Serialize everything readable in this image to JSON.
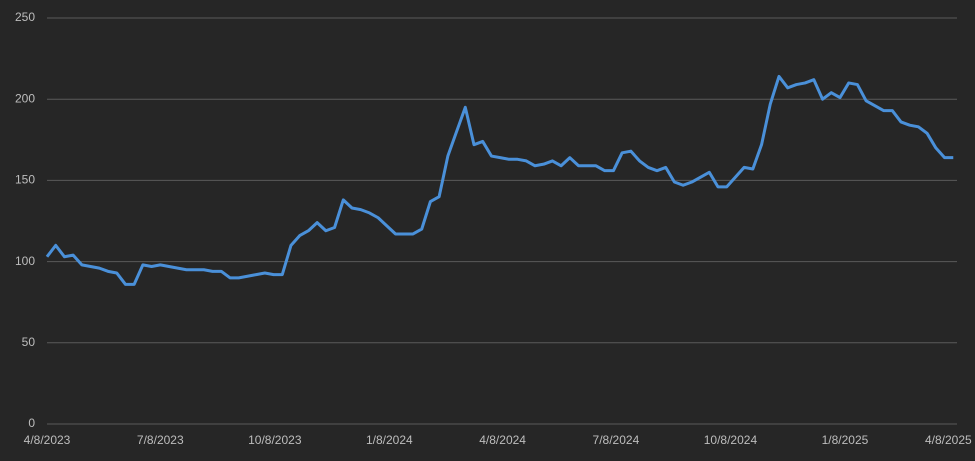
{
  "chart_data": {
    "type": "line",
    "x": [
      "4/8/2023",
      "4/15/2023",
      "4/22/2023",
      "4/29/2023",
      "5/6/2023",
      "5/13/2023",
      "5/20/2023",
      "5/27/2023",
      "6/3/2023",
      "6/10/2023",
      "6/17/2023",
      "6/24/2023",
      "7/1/2023",
      "7/8/2023",
      "7/15/2023",
      "7/22/2023",
      "7/29/2023",
      "8/5/2023",
      "8/12/2023",
      "8/19/2023",
      "8/26/2023",
      "9/2/2023",
      "9/9/2023",
      "9/16/2023",
      "9/23/2023",
      "9/30/2023",
      "10/7/2023",
      "10/14/2023",
      "10/21/2023",
      "10/28/2023",
      "11/4/2023",
      "11/11/2023",
      "11/18/2023",
      "11/25/2023",
      "12/2/2023",
      "12/9/2023",
      "12/16/2023",
      "12/23/2023",
      "12/30/2023",
      "1/6/2024",
      "1/13/2024",
      "1/20/2024",
      "1/27/2024",
      "2/3/2024",
      "2/10/2024",
      "2/17/2024",
      "2/24/2024",
      "3/2/2024",
      "3/9/2024",
      "3/16/2024",
      "3/23/2024",
      "3/30/2024",
      "4/6/2024",
      "4/13/2024",
      "4/20/2024",
      "4/27/2024",
      "5/4/2024",
      "5/11/2024",
      "5/18/2024",
      "5/25/2024",
      "6/1/2024",
      "6/8/2024",
      "6/15/2024",
      "6/22/2024",
      "6/29/2024",
      "7/6/2024",
      "7/13/2024",
      "7/20/2024",
      "7/27/2024",
      "8/3/2024",
      "8/10/2024",
      "8/17/2024",
      "8/24/2024",
      "8/31/2024",
      "9/7/2024",
      "9/14/2024",
      "9/21/2024",
      "9/28/2024",
      "10/5/2024",
      "10/12/2024",
      "10/19/2024",
      "10/26/2024",
      "11/2/2024",
      "11/9/2024",
      "11/16/2024",
      "11/23/2024",
      "11/30/2024",
      "12/7/2024",
      "12/14/2024",
      "12/21/2024",
      "12/28/2024",
      "1/4/2025",
      "1/11/2025",
      "1/18/2025",
      "1/25/2025",
      "2/1/2025",
      "2/8/2025",
      "2/15/2025",
      "2/22/2025",
      "3/1/2025",
      "3/8/2025",
      "3/15/2025",
      "3/22/2025",
      "3/29/2025",
      "4/5/2025"
    ],
    "series": [
      {
        "color": "#4a90d9",
        "values": [
          103,
          110,
          103,
          104,
          98,
          97,
          96,
          94,
          93,
          86,
          86,
          98,
          97,
          98,
          97,
          96,
          95,
          95,
          95,
          94,
          94,
          90,
          90,
          91,
          92,
          93,
          92,
          92,
          110,
          116,
          119,
          124,
          119,
          121,
          138,
          133,
          132,
          130,
          127,
          122,
          117,
          117,
          117,
          120,
          137,
          140,
          165,
          180,
          195,
          172,
          174,
          165,
          164,
          163,
          163,
          162,
          159,
          160,
          162,
          159,
          164,
          159,
          159,
          159,
          156,
          156,
          167,
          168,
          162,
          158,
          156,
          158,
          149,
          147,
          149,
          152,
          155,
          146,
          146,
          152,
          158,
          157,
          172,
          197,
          214,
          207,
          209,
          210,
          212,
          200,
          204,
          201,
          210,
          209,
          199,
          196,
          193,
          193,
          186,
          184,
          183,
          179,
          170,
          164,
          164
        ]
      }
    ],
    "xlim": [
      "4/8/2023",
      "4/8/2025"
    ],
    "xticks": [
      "4/8/2023",
      "7/8/2023",
      "10/8/2023",
      "1/8/2024",
      "4/8/2024",
      "7/8/2024",
      "10/8/2024",
      "1/8/2025",
      "4/8/2025"
    ],
    "ylim": [
      0,
      250
    ],
    "yticks": [
      0,
      50,
      100,
      150,
      200,
      250
    ],
    "grid": true
  }
}
